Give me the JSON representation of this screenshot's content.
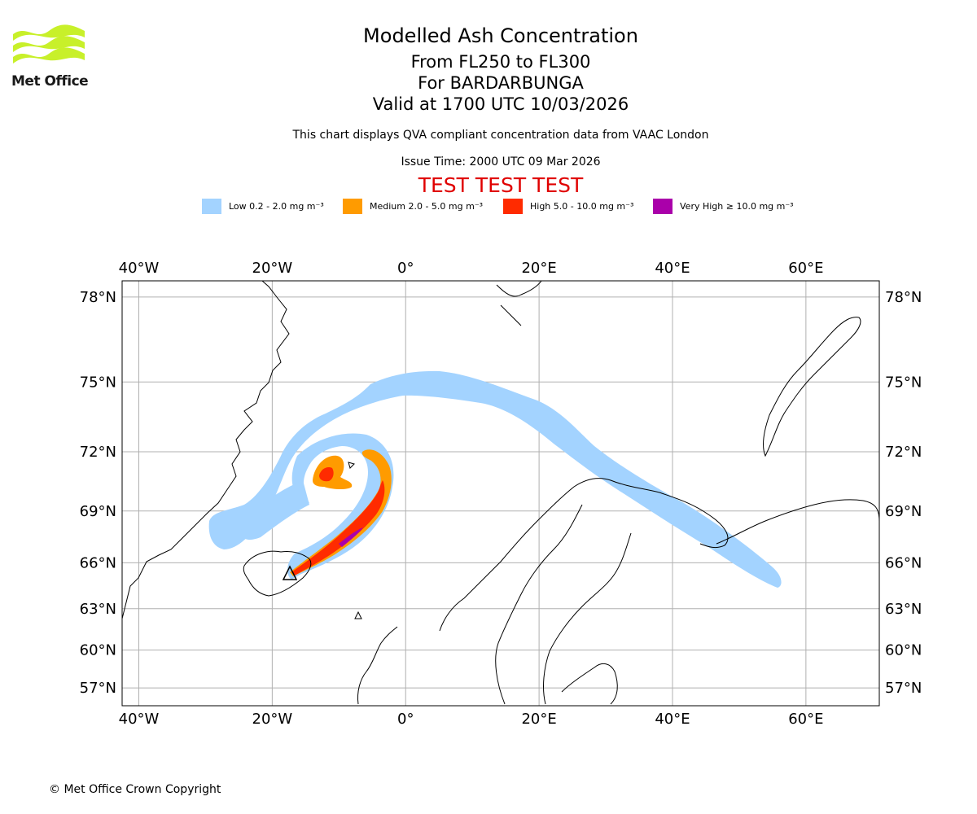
{
  "header": {
    "logo_text": "Met Office",
    "title": "Modelled Ash Concentration",
    "level_range": "From FL250 to FL300",
    "volcano": "For BARDARBUNGA",
    "valid_time": "Valid at 1700 UTC 10/03/2026",
    "note": "This chart displays QVA compliant concentration data from VAAC London",
    "issue_time": "Issue Time: 2000 UTC 09 Mar 2026",
    "test_banner": "TEST TEST TEST"
  },
  "legend": [
    {
      "label": "Low 0.2 - 2.0 mg m⁻³",
      "color": "#a3d3ff"
    },
    {
      "label": "Medium 2.0 - 5.0 mg m⁻³",
      "color": "#ff9b00"
    },
    {
      "label": "High 5.0 - 10.0 mg m⁻³",
      "color": "#ff2b00"
    },
    {
      "label": "Very High  ≥  10.0 mg m⁻³",
      "color": "#aa00aa"
    }
  ],
  "map": {
    "lon_ticks": [
      "40°W",
      "20°W",
      "0°",
      "20°E",
      "40°E",
      "60°E"
    ],
    "lat_ticks": [
      "78°N",
      "75°N",
      "72°N",
      "69°N",
      "66°N",
      "63°N",
      "60°N",
      "57°N"
    ],
    "lon_values": [
      -40,
      -20,
      0,
      20,
      40,
      60
    ],
    "lat_values": [
      78,
      75,
      72,
      69,
      66,
      63,
      60,
      57
    ],
    "lon_range": [
      -42.5,
      71
    ],
    "lat_range": [
      55.5,
      78.5
    ],
    "gridlines": true,
    "volcano_marker": "triangle-icon"
  },
  "footer": {
    "copyright": "© Met Office Crown Copyright"
  }
}
